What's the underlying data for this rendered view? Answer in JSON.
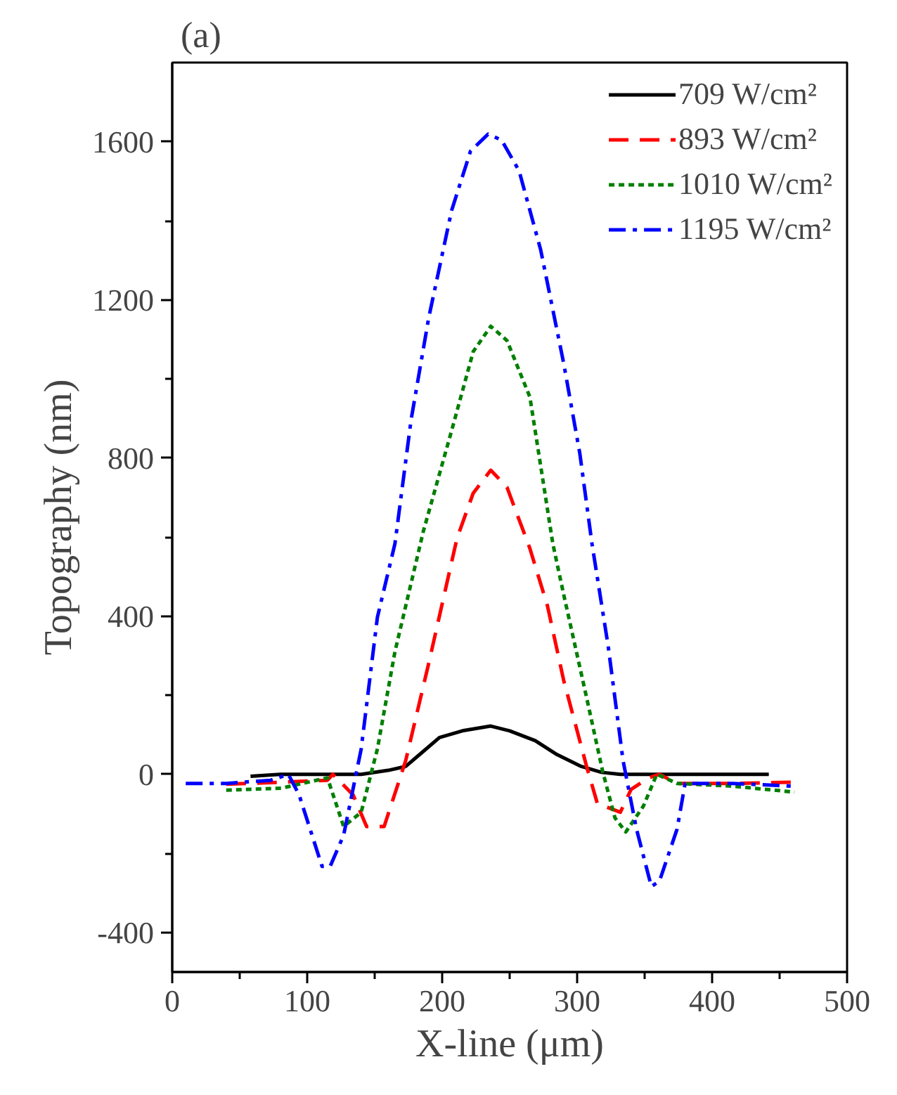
{
  "chart_data": {
    "type": "line",
    "title": "(a)",
    "xlabel": "X-line (μm)",
    "ylabel": "Topography (nm)",
    "xlim": [
      0,
      500
    ],
    "ylim": [
      -500,
      1800
    ],
    "xticks": [
      0,
      {
        "value": 50,
        "label": null
      },
      100,
      {
        "value": 150,
        "label": null
      },
      200,
      {
        "value": 250,
        "label": null
      },
      300,
      {
        "value": 350,
        "label": null
      },
      400,
      {
        "value": 450,
        "label": null
      },
      500
    ],
    "yticks": [
      -400,
      {
        "value": -200,
        "label": null
      },
      0,
      {
        "value": 200,
        "label": null
      },
      400,
      {
        "value": 600,
        "label": null
      },
      800,
      {
        "value": 1000,
        "label": null
      },
      1200,
      {
        "value": 1400,
        "label": null
      },
      1600
    ],
    "grid": false,
    "legend": "top right",
    "marker": "none",
    "series": [
      {
        "name": "709 W/cm²",
        "color": "#000000",
        "line_style": "solid",
        "x": [
          58,
          80,
          100,
          120,
          140,
          160,
          173,
          185,
          198,
          215,
          236,
          250,
          269,
          285,
          303,
          318,
          332,
          360,
          400,
          442
        ],
        "values": [
          -5,
          0,
          0,
          0,
          0,
          10,
          20,
          55,
          93,
          110,
          122,
          110,
          85,
          50,
          20,
          5,
          0,
          0,
          0,
          0
        ]
      },
      {
        "name": "893 W/cm²",
        "color": "#ff0000",
        "line_style": "dashed",
        "x": [
          40,
          81,
          115,
          119,
          134,
          144,
          157,
          173,
          190,
          211,
          223,
          236,
          248,
          265,
          278,
          290,
          307,
          315,
          332,
          340,
          353,
          361,
          374,
          415,
          461
        ],
        "values": [
          -25,
          -20,
          -15,
          0,
          -52,
          -132,
          -132,
          35,
          280,
          597,
          711,
          769,
          726,
          571,
          426,
          238,
          20,
          -74,
          -96,
          -38,
          -9,
          0,
          -23,
          -23,
          -20
        ]
      },
      {
        "name": "1010 W/cm²",
        "color": "#007f00",
        "line_style": "dotted",
        "x": [
          40,
          81,
          115,
          127,
          140,
          152,
          165,
          186,
          207,
          223,
          236,
          248,
          265,
          282,
          290,
          307,
          319,
          328,
          336,
          349,
          359,
          374,
          415,
          461
        ],
        "values": [
          -40,
          -35,
          -9,
          -132,
          -96,
          64,
          310,
          614,
          869,
          1069,
          1133,
          1097,
          954,
          583,
          455,
          194,
          6,
          -110,
          -146,
          -81,
          0,
          -23,
          -30,
          -45
        ]
      },
      {
        "name": "1195 W/cm²",
        "color": "#0000ff",
        "line_style": "dashdot",
        "x": [
          10,
          40,
          73,
          86,
          94,
          111,
          117,
          127,
          140,
          152,
          165,
          177,
          190,
          207,
          221,
          234,
          244,
          257,
          273,
          290,
          302,
          311,
          323,
          334,
          344,
          355,
          361,
          374,
          380,
          415,
          460
        ],
        "values": [
          -23,
          -23,
          -15,
          0,
          -52,
          -233,
          -233,
          -154,
          64,
          397,
          583,
          897,
          1154,
          1426,
          1576,
          1619,
          1604,
          1526,
          1326,
          1040,
          811,
          583,
          324,
          35,
          -139,
          -284,
          -270,
          -139,
          -23,
          -23,
          -30
        ]
      }
    ]
  }
}
